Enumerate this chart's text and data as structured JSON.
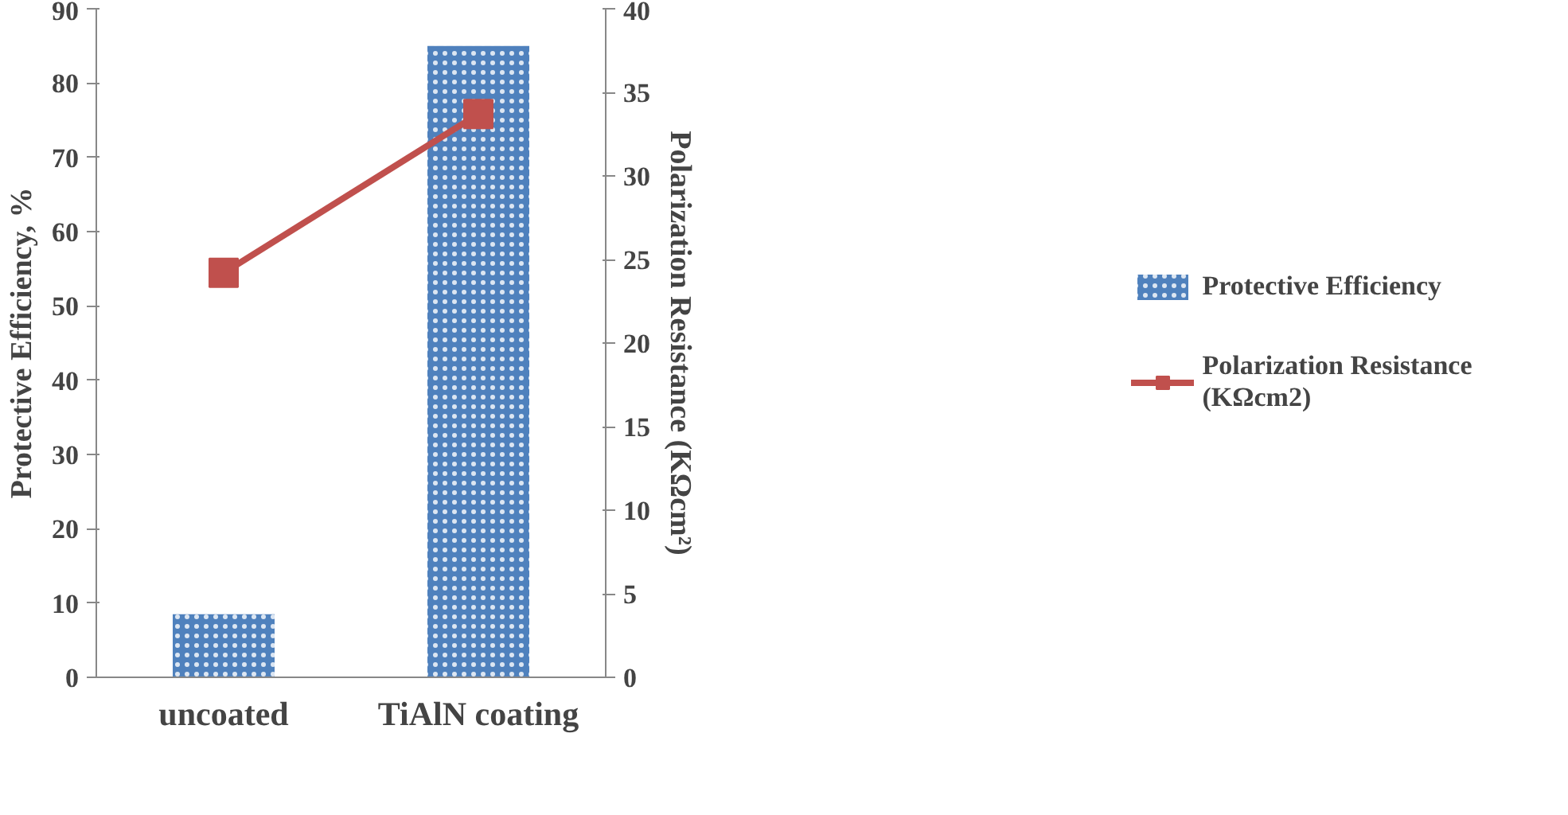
{
  "chart_data": {
    "type": "bar",
    "categories": [
      "uncoated",
      "TiAlN coating"
    ],
    "ylabel": "Protective Efficiency, %",
    "y2label": "Polarization Resistance (KΩcm²)",
    "ylim": [
      0,
      90
    ],
    "yticks": [
      0,
      10,
      20,
      30,
      40,
      50,
      60,
      70,
      80,
      90
    ],
    "y2lim": [
      0,
      40
    ],
    "y2ticks": [
      0,
      5,
      10,
      15,
      20,
      25,
      30,
      35,
      40
    ],
    "series": [
      {
        "name": "Protective Efficiency",
        "color": "#4f81bd",
        "values": [
          8.5,
          85
        ]
      },
      {
        "name": "Polarization Resistance (KΩcm2)",
        "type": "line",
        "axis": "y2",
        "color": "#c0504d",
        "marker": "square",
        "values": [
          24.2,
          33.7
        ]
      }
    ],
    "legend": "right",
    "grid": false
  }
}
